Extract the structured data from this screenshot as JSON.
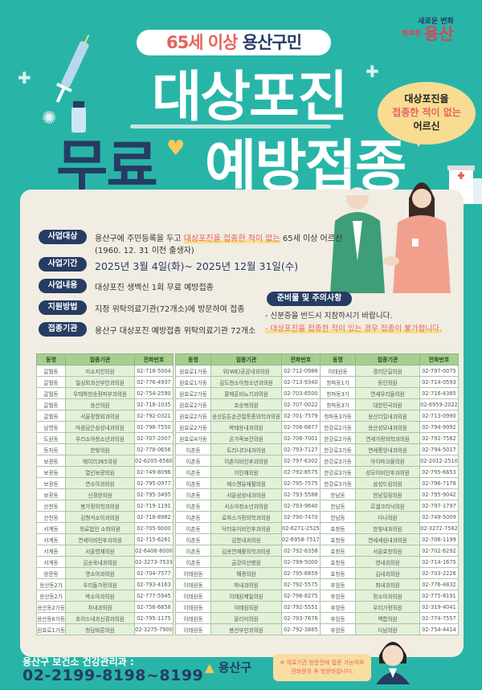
{
  "brand": {
    "line1": "새로운 변화",
    "line2": "행복한",
    "name": "용산"
  },
  "header": {
    "pill_highlight": "65세 이상",
    "pill_text": "용산구민",
    "title_line1": "대상포진",
    "title_free": "무료",
    "title_rest": "예방접종"
  },
  "bubble": {
    "line1": "대상포진을",
    "line2": "접종한 적이 없는",
    "line3": "어르신"
  },
  "info": [
    {
      "label": "사업대상",
      "text_pre": "용산구에 주민등록을 두고 ",
      "text_hl": "대상포진을 접종한 적이 없는",
      "text_post": " 65세 이상 어르신",
      "text_line2": "(1960. 12. 31 이전 출생자)"
    },
    {
      "label": "사업기간",
      "text": "2025년 3월 4일(화)~ 2025년 12월 31일(수)"
    },
    {
      "label": "사업내용",
      "text": "대상포진 생백신 1회 무료 예방접종"
    },
    {
      "label": "지원방법",
      "text": "지정 위탁의료기관(72개소)에 방문하여 접종"
    },
    {
      "label": "접종기관",
      "text": "용산구 대상포진 예방접종 위탁의료기관  72개소"
    }
  ],
  "notice": {
    "title": "준비물 및 주의사항",
    "item1": "- 신분증을 반드시 지참하시기 바랍니다.",
    "item2": "- 대상포진을 접종한 적이 있는 경우 접종이 불가합니다."
  },
  "table_headers": [
    "동명",
    "접종기관",
    "전화번호"
  ],
  "tables": [
    [
      [
        "갈월동",
        "미소지인의원",
        "02-718-5004"
      ],
      [
        "갈월동",
        "일심외과산부인과의원",
        "02-776-4937"
      ],
      [
        "갈월동",
        "우태하한송정피부과의원",
        "02-754-2590"
      ],
      [
        "갈월동",
        "용산의원",
        "02-718-1035"
      ],
      [
        "갈월동",
        "서울정형외과의원",
        "02-792-0321"
      ],
      [
        "남영동",
        "마음담은삼성내과의원",
        "02-798-7550"
      ],
      [
        "도원동",
        "우리소아청소년과의원",
        "02-707-2007"
      ],
      [
        "동자동",
        "한빛의원",
        "02-778-0656"
      ],
      [
        "보광동",
        "헤이리365의원",
        "02-6205-6560"
      ],
      [
        "보광동",
        "열린보광의원",
        "02-749-8096"
      ],
      [
        "보광동",
        "연소아과의원",
        "02-795-0977"
      ],
      [
        "보광동",
        "신경완의원",
        "02-795-3495"
      ],
      [
        "산천동",
        "봉가정의학과의원",
        "02-719-1191"
      ],
      [
        "산천동",
        "김형석소아과의원",
        "02-718-8982"
      ],
      [
        "서계동",
        "의료법인 소화의원",
        "02-705-9000"
      ],
      [
        "서계동",
        "연세이비인후과의원",
        "02-715-6261"
      ],
      [
        "서계동",
        "서울영재의원",
        "02-6406-8000"
      ],
      [
        "서계동",
        "김승욱내과의원",
        "02-3273-7533"
      ],
      [
        "용문동",
        "명소아과의원",
        "02-704-7577"
      ],
      [
        "용산동2가",
        "우리들가정의원",
        "02-793-4163"
      ],
      [
        "용산동2가",
        "박소아과의원",
        "02-777-5945"
      ],
      [
        "용산동2가동",
        "차내과의원",
        "02-756-6858"
      ],
      [
        "용산동6가동",
        "초이스내과신경과의원",
        "02-795-1175"
      ],
      [
        "원효로1가동",
        "청담바른의원",
        "02-3275-7900"
      ]
    ],
    [
      [
        "원효로1가동",
        "위(WE)공감내과의원",
        "02-712-0988"
      ],
      [
        "원효로1가동",
        "김도현소아청소년과의원",
        "02-713-9340"
      ],
      [
        "원효로2가동",
        "황재훈비뇨기과의원",
        "02-703-6500"
      ],
      [
        "원효로2가동",
        "조승복의원",
        "02-707-0022"
      ],
      [
        "원효로2가동",
        "용산튼튼손관절통증의학과의원",
        "02-701-7579"
      ],
      [
        "원효로2가동",
        "박태용내과의원",
        "02-706-6877"
      ],
      [
        "원효로4가동",
        "온가족보건의원",
        "02-706-7001"
      ],
      [
        "이촌동",
        "트리니티내과의원",
        "02-793-7127"
      ],
      [
        "이촌동",
        "이촌이비인후과의원",
        "02-797-6302"
      ],
      [
        "이촌동",
        "이인재의원",
        "02-792-8575"
      ],
      [
        "이촌동",
        "예스앤유재활의원",
        "02-795-7575"
      ],
      [
        "이촌동",
        "서울삼성내과의원",
        "02-793-5588"
      ],
      [
        "이촌동",
        "서소아청소년과의원",
        "02-793-9640"
      ],
      [
        "이촌동",
        "로하스가정의학과의원",
        "02-790-7470"
      ],
      [
        "이촌동",
        "닥터유이비인후과의원",
        "02-6271-2525"
      ],
      [
        "이촌동",
        "김항내과의원",
        "02-6958-7517"
      ],
      [
        "이촌동",
        "김용연재활의학과의원",
        "02-792-6358"
      ],
      [
        "이촌동",
        "금강아산병원",
        "02-799-5000"
      ],
      [
        "이태원동",
        "해광의원",
        "02-795-6859"
      ],
      [
        "이태원동",
        "하내과의원",
        "02-792-5575"
      ],
      [
        "이태원동",
        "이태원제일의원",
        "02-796-8275"
      ],
      [
        "이태원동",
        "이태원의원",
        "02-792-5551"
      ],
      [
        "이태원동",
        "올리미의원",
        "02-793-7676"
      ],
      [
        "이태원동",
        "봉산부인과의원",
        "02-792-3885"
      ]
    ],
    [
      [
        "이태원동",
        "경리단길의원",
        "02-797-0075"
      ],
      [
        "청파동1가",
        "동인의원",
        "02-714-0593"
      ],
      [
        "청파동3가",
        "연세우리들의원",
        "02-716-4385"
      ],
      [
        "청파동3가",
        "대한민국의원",
        "02-6959-2022"
      ],
      [
        "청파동3가동",
        "용산더힐내과의원",
        "02-713-0990"
      ],
      [
        "한강로2가동",
        "용산성모내과의원",
        "02-794-9992"
      ],
      [
        "한강로2가동",
        "연세가정의학과의원",
        "02-792-7582"
      ],
      [
        "한강로3가동",
        "연세중앙내과의원",
        "02-794-5017"
      ],
      [
        "한강로3가동",
        "아이파크몰의원",
        "02-2012-2510"
      ],
      [
        "한강로3가동",
        "성모이비인후과의원",
        "02-795-6653"
      ],
      [
        "한강로3가동",
        "삼성드림의원",
        "02-796-7178"
      ],
      [
        "한남동",
        "한남힐링의원",
        "02-795-9042"
      ],
      [
        "한남동",
        "르셀크리닉의원",
        "02-797-1797"
      ],
      [
        "한남동",
        "다나의원",
        "02-749-5009"
      ],
      [
        "효창동",
        "한빛내과의원",
        "02-3272-7582"
      ],
      [
        "효창동",
        "연세세림내과의원",
        "02-706-1199"
      ],
      [
        "효창동",
        "서울효창의원",
        "02-702-6292"
      ],
      [
        "효창동",
        "영내과의원",
        "02-714-1675"
      ],
      [
        "효창동",
        "김내과의원",
        "02-703-2226"
      ],
      [
        "후암동",
        "최내과의원",
        "02-776-4832"
      ],
      [
        "후암동",
        "정소아과의원",
        "02-775-8191"
      ],
      [
        "후암동",
        "우리가정의원",
        "02-319-4041"
      ],
      [
        "후암동",
        "백합의원",
        "02-774-7557"
      ],
      [
        "후암동",
        "다남의원",
        "02-754-4414"
      ]
    ]
  ],
  "footer": {
    "dept": "용산구 보건소 건강관리과 :",
    "phone": "02-2199-8198~8199",
    "logo_text": "용산구",
    "note_line1": "※ 의료기관 방문전에 접종 가능여부",
    "note_line2": "전화문의 후 방문바랍니다."
  },
  "colors": {
    "background": "#28b5a8",
    "navy": "#263c63",
    "coral": "#e5625c",
    "panel": "#f1ede3",
    "table_header": "#a6cf8f"
  }
}
